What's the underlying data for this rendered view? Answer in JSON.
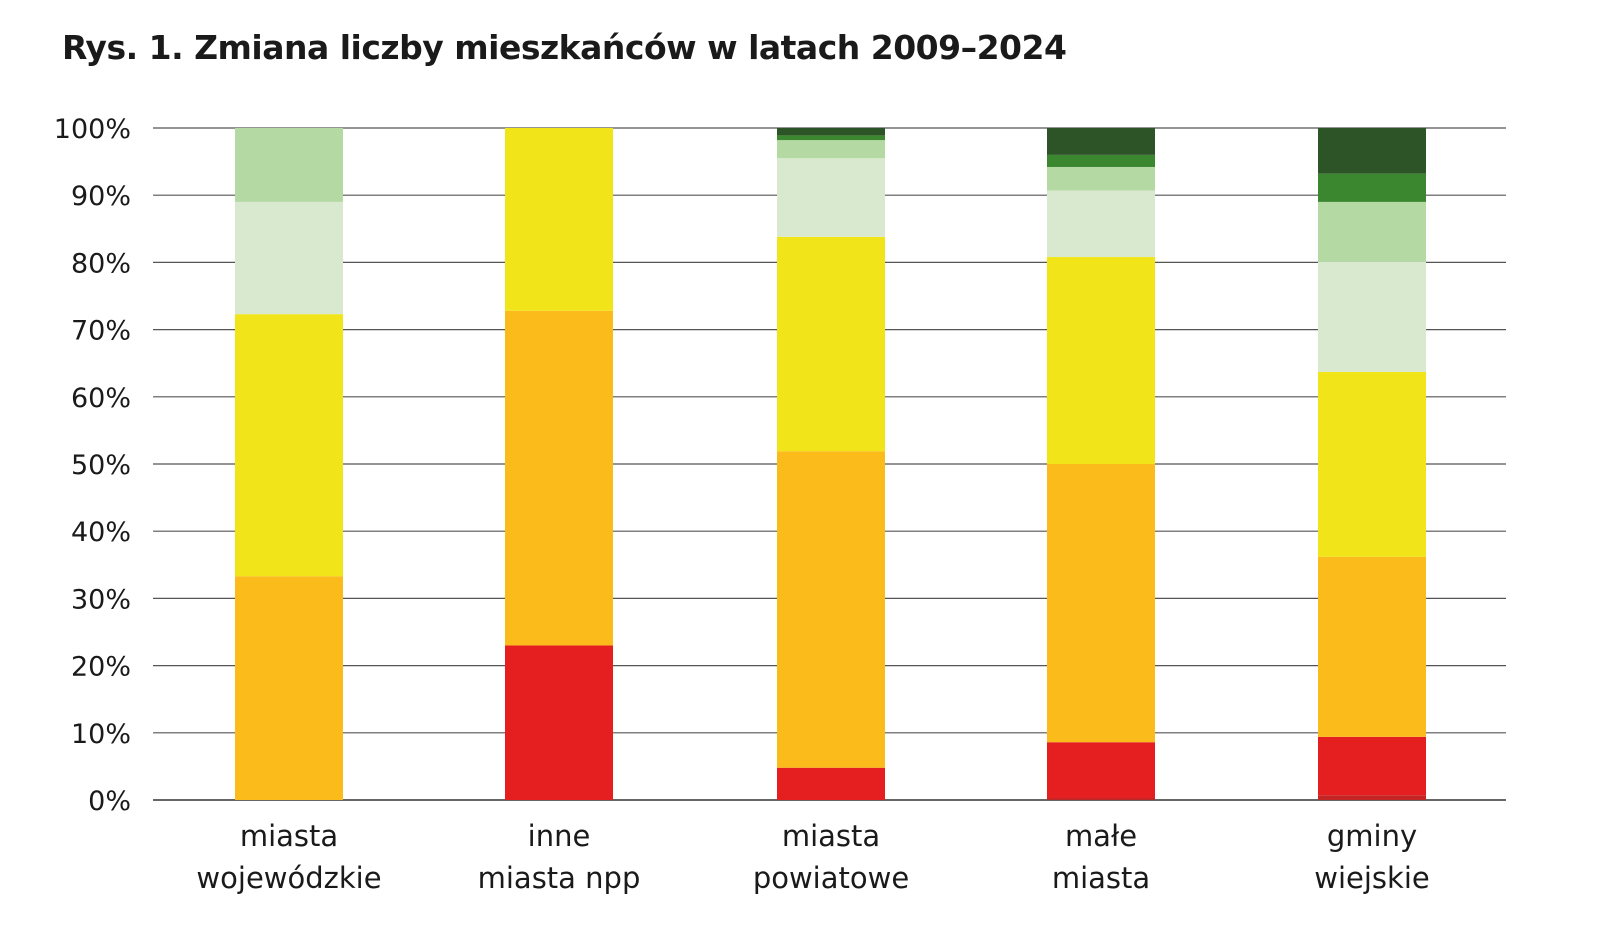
{
  "chart_data": {
    "type": "bar",
    "stacked": true,
    "title": "Rys. 1. Zmiana liczby mieszkańców w latach 2009–2024",
    "xlabel": "",
    "ylabel": "",
    "ylim": [
      0,
      100
    ],
    "y_ticks": [
      "0%",
      "10%",
      "20%",
      "30%",
      "40%",
      "50%",
      "60%",
      "70%",
      "80%",
      "90%",
      "100%"
    ],
    "grid": true,
    "legend": "none",
    "categories": [
      [
        "miasta",
        "wojewódzkie"
      ],
      [
        "inne",
        "miasta npp"
      ],
      [
        "miasta",
        "powiatowe"
      ],
      [
        "małe",
        "miasta"
      ],
      [
        "gminy",
        "wiejskie"
      ]
    ],
    "series": [
      {
        "color": "#c42525",
        "values": [
          0,
          0,
          0,
          0.3,
          0.7
        ]
      },
      {
        "color": "#e51f1f",
        "values": [
          0,
          23,
          4.8,
          8.3,
          8.7
        ]
      },
      {
        "color": "#fbbb1a",
        "values": [
          33.3,
          49.8,
          47.1,
          41.4,
          26.8
        ]
      },
      {
        "color": "#f1e51a",
        "values": [
          39.0,
          27.2,
          31.9,
          30.8,
          27.5
        ]
      },
      {
        "color": "#d9e9cf",
        "values": [
          16.7,
          0,
          11.7,
          9.9,
          16.4
        ]
      },
      {
        "color": "#b5d9a3",
        "values": [
          11.0,
          0,
          2.7,
          3.5,
          8.9
        ]
      },
      {
        "color": "#3b8730",
        "values": [
          0,
          0,
          0.7,
          1.8,
          4.2
        ]
      },
      {
        "color": "#2d5426",
        "values": [
          0,
          0,
          1.1,
          4.0,
          6.8
        ]
      }
    ]
  }
}
